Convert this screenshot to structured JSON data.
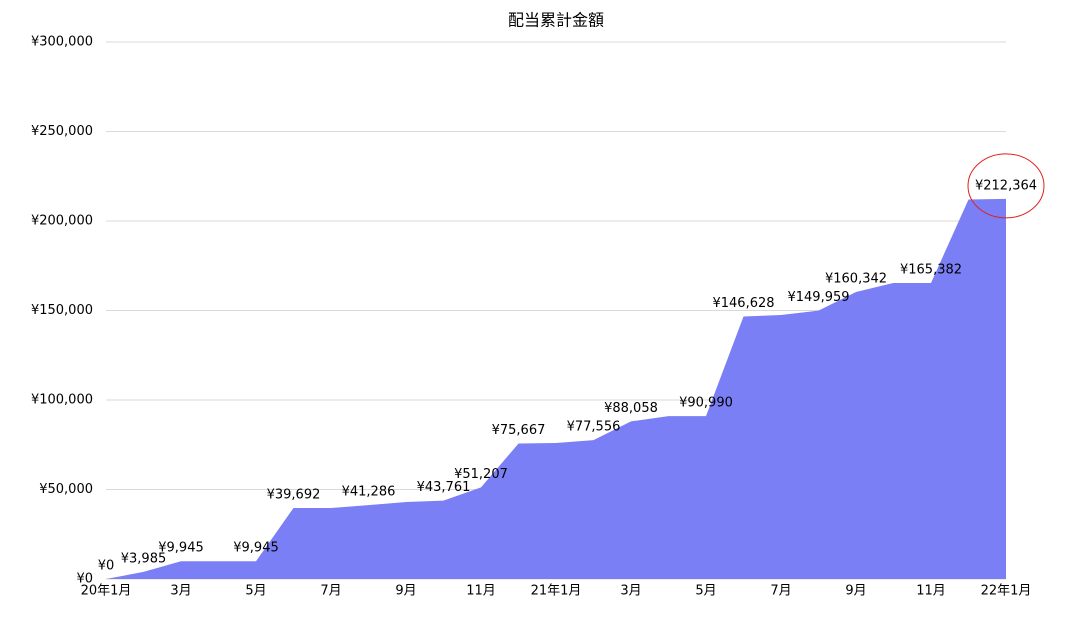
{
  "chart_data": {
    "type": "area",
    "title": "配当累計金額",
    "categories": [
      "20年1月",
      null,
      "3月",
      null,
      "5月",
      null,
      "7月",
      null,
      "9月",
      null,
      "11月",
      null,
      "21年1月",
      null,
      "3月",
      null,
      "5月",
      null,
      "7月",
      null,
      "9月",
      null,
      "11月",
      null,
      "22年1月"
    ],
    "values": [
      0,
      3985,
      9945,
      9945,
      9945,
      39692,
      39692,
      41286,
      43000,
      43761,
      51207,
      75667,
      76000,
      77556,
      88058,
      90990,
      90990,
      146628,
      147500,
      149959,
      160342,
      165382,
      165382,
      212000,
      212364
    ],
    "value_labels": [
      "¥0",
      "¥3,985",
      "¥9,945",
      null,
      "¥9,945",
      "¥39,692",
      null,
      "¥41,286",
      null,
      "¥43,761",
      "¥51,207",
      "¥75,667",
      null,
      "¥77,556",
      "¥88,058",
      null,
      "¥90,990",
      "¥146,628",
      null,
      "¥149,959",
      "¥160,342",
      null,
      "¥165,382",
      null,
      "¥212,364"
    ],
    "color": "#7b7ff5",
    "ylim": [
      0,
      300000
    ],
    "yticks": [
      {
        "value": 0,
        "label": "¥0"
      },
      {
        "value": 50000,
        "label": "¥50,000"
      },
      {
        "value": 100000,
        "label": "¥100,000"
      },
      {
        "value": 150000,
        "label": "¥150,000"
      },
      {
        "value": 200000,
        "label": "¥200,000"
      },
      {
        "value": 250000,
        "label": "¥250,000"
      },
      {
        "value": 300000,
        "label": "¥300,000"
      }
    ],
    "grid": true
  }
}
